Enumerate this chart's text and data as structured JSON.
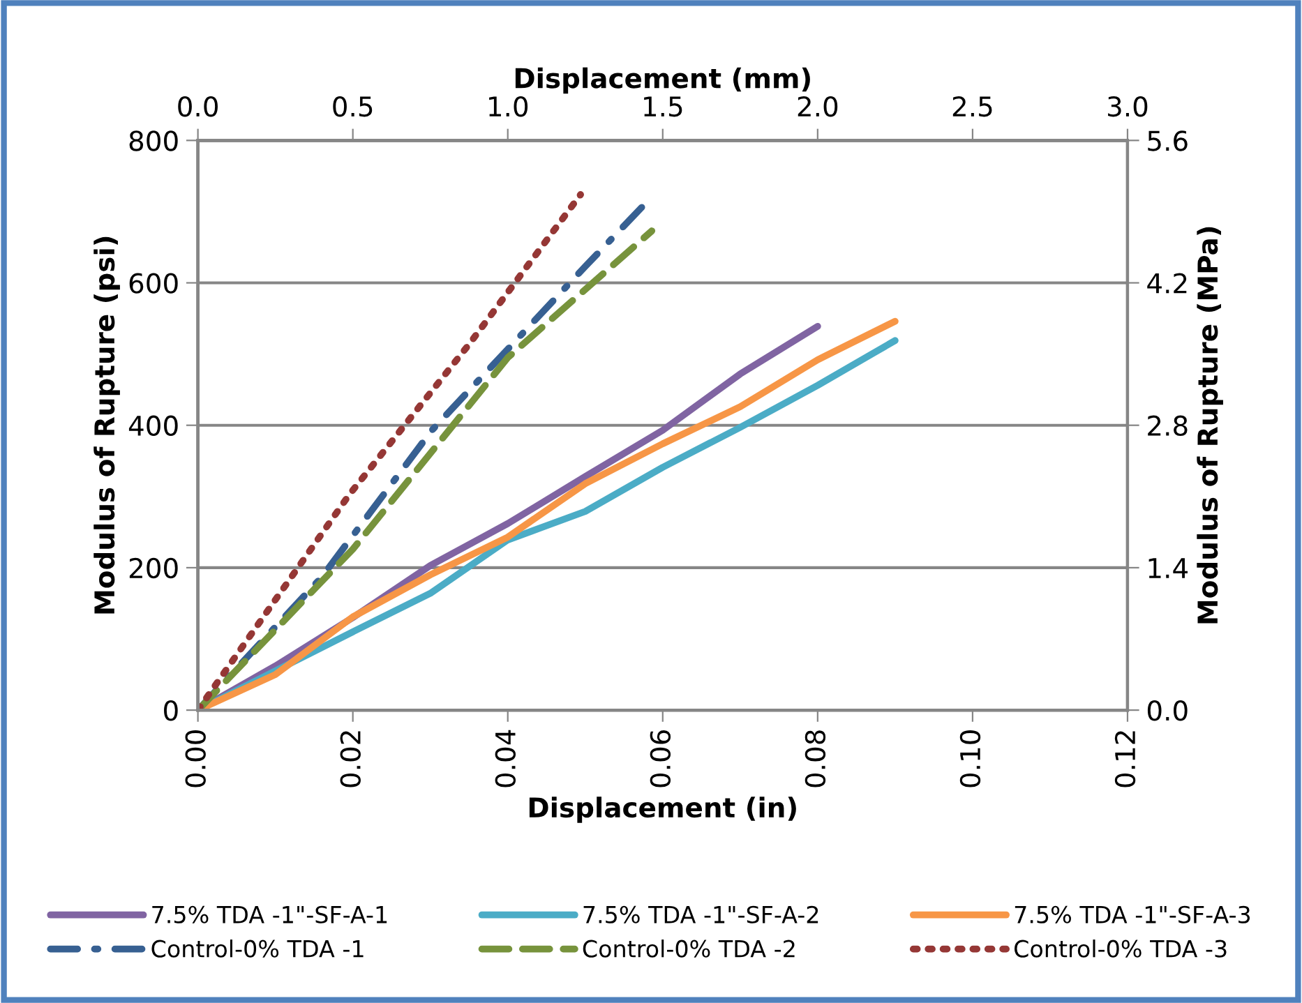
{
  "chart_data": {
    "type": "line",
    "xlabel": "Displacement (in)",
    "ylabel": "Modulus of Rupture (psi)",
    "x2label": "Displacement (mm)",
    "y2label": "Modulus of Rupture (MPa)",
    "xlim": [
      0,
      0.12
    ],
    "xticks": [
      {
        "value": 0,
        "label": "0.00"
      },
      {
        "value": 0.02,
        "label": "0.02"
      },
      {
        "value": 0.04,
        "label": "0.04"
      },
      {
        "value": 0.06,
        "label": "0.06"
      },
      {
        "value": 0.08,
        "label": "0.08"
      },
      {
        "value": 0.1,
        "label": "0.10"
      },
      {
        "value": 0.12,
        "label": "0.12"
      }
    ],
    "ylim": [
      0,
      800
    ],
    "yticks": [
      0,
      200,
      400,
      600,
      800
    ],
    "x2lim": [
      0,
      3
    ],
    "x2ticks": [
      {
        "value": 0,
        "label": "0.0"
      },
      {
        "value": 0.5,
        "label": "0.5"
      },
      {
        "value": 1,
        "label": "1.0"
      },
      {
        "value": 1.5,
        "label": "1.5"
      },
      {
        "value": 2,
        "label": "2.0"
      },
      {
        "value": 2.5,
        "label": "2.5"
      },
      {
        "value": 3,
        "label": "3.0"
      }
    ],
    "y2lim": [
      0,
      5.6
    ],
    "y2ticks": [
      {
        "value": 0,
        "label": "0.0"
      },
      {
        "value": 1.4,
        "label": "1.4"
      },
      {
        "value": 2.8,
        "label": "2.8"
      },
      {
        "value": 4.2,
        "label": "4.2"
      },
      {
        "value": 5.6,
        "label": "5.6"
      }
    ],
    "grid": "y",
    "legend": "bottom",
    "series": [
      {
        "name": "7.5% TDA -1\"-SF-A-1",
        "color": "#8064a2",
        "line_style": "solid",
        "x": [
          0,
          0.01,
          0.02,
          0.03,
          0.04,
          0.05,
          0.06,
          0.07,
          0.08
        ],
        "values": [
          0,
          62,
          130,
          203,
          262,
          328,
          393,
          472,
          539
        ]
      },
      {
        "name": "7.5% TDA -1\"-SF-A-2",
        "color": "#4bacc6",
        "line_style": "solid",
        "x": [
          0,
          0.01,
          0.02,
          0.03,
          0.04,
          0.05,
          0.06,
          0.07,
          0.08,
          0.09
        ],
        "values": [
          0,
          55,
          110,
          164,
          239,
          279,
          341,
          397,
          456,
          519
        ]
      },
      {
        "name": "7.5% TDA -1\"-SF-A-3",
        "color": "#f79646",
        "line_style": "solid",
        "x": [
          0,
          0.01,
          0.02,
          0.03,
          0.04,
          0.05,
          0.06,
          0.07,
          0.08,
          0.09
        ],
        "values": [
          0,
          50,
          131,
          190,
          243,
          318,
          374,
          426,
          492,
          546
        ]
      },
      {
        "name": "Control-0% TDA -1",
        "color": "#376092",
        "line_style": "dashdot",
        "x": [
          0,
          0.016,
          0.0302,
          0.05,
          0.0579
        ],
        "values": [
          0,
          187,
          393,
          623,
          713
        ]
      },
      {
        "name": "Control-0% TDA -2",
        "color": "#77933c",
        "line_style": "dashed",
        "x": [
          0,
          0.02,
          0.04,
          0.0586
        ],
        "values": [
          0,
          226,
          495,
          673
        ]
      },
      {
        "name": "Control-0% TDA -3",
        "color": "#953735",
        "line_style": "dotted",
        "x": [
          0,
          0.0195,
          0.0351,
          0.0494
        ],
        "values": [
          0,
          302,
          515,
          724
        ]
      }
    ]
  }
}
